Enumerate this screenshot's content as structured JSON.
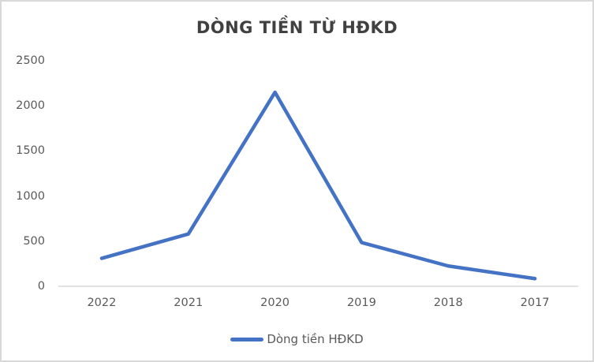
{
  "chart_data": {
    "type": "line",
    "title": "DÒNG TIỀN TỪ HĐKD",
    "categories": [
      "2022",
      "2021",
      "2020",
      "2019",
      "2018",
      "2017"
    ],
    "series": [
      {
        "name": "Dòng tiền HĐKD",
        "values": [
          310,
          580,
          2150,
          485,
          225,
          85
        ]
      }
    ],
    "xlabel": "",
    "ylabel": "",
    "ylim": [
      0,
      2500
    ],
    "y_ticks": [
      0,
      500,
      1000,
      1500,
      2000,
      2500
    ],
    "grid": false,
    "legend_position": "bottom",
    "colors": {
      "line": "#4472C4",
      "title_text": "#404040",
      "axis_text": "#595959",
      "axis_line": "#D9D9D9",
      "border": "#D9D9D9",
      "background": "#FFFFFF"
    }
  }
}
